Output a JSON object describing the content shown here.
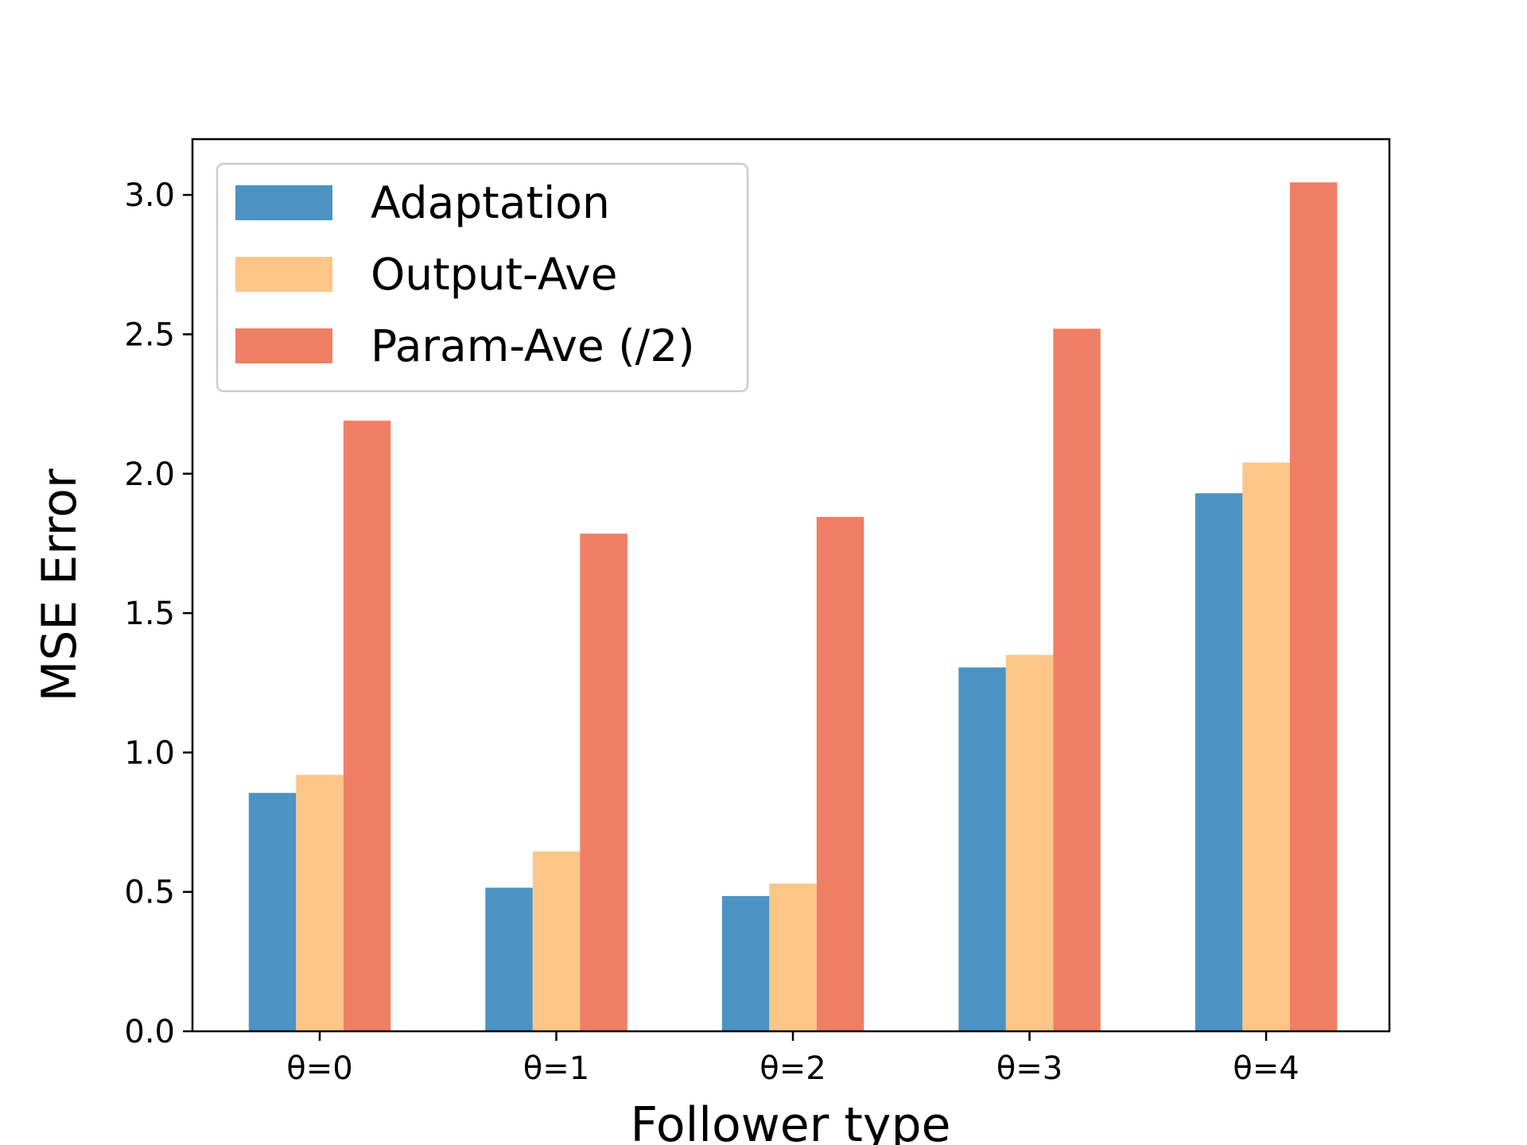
{
  "chart_data": {
    "type": "bar",
    "title": "",
    "xlabel": "Follower type",
    "ylabel": "MSE Error",
    "categories": [
      "θ=0",
      "θ=1",
      "θ=2",
      "θ=3",
      "θ=4"
    ],
    "series": [
      {
        "name": "Adaptation",
        "color": "#4c93c3",
        "values": [
          0.855,
          0.515,
          0.485,
          1.305,
          1.93
        ]
      },
      {
        "name": "Output-Ave",
        "color": "#fcc688",
        "values": [
          0.92,
          0.645,
          0.53,
          1.35,
          2.04
        ]
      },
      {
        "name": "Param-Ave (/2)",
        "color": "#ef7f64",
        "values": [
          2.19,
          1.785,
          1.845,
          2.52,
          3.045
        ]
      }
    ],
    "ylim": [
      0,
      3.2
    ],
    "yticks": [
      "0.0",
      "0.5",
      "1.0",
      "1.5",
      "2.0",
      "2.5",
      "3.0"
    ],
    "legend_position": "upper-left",
    "grid": false
  }
}
